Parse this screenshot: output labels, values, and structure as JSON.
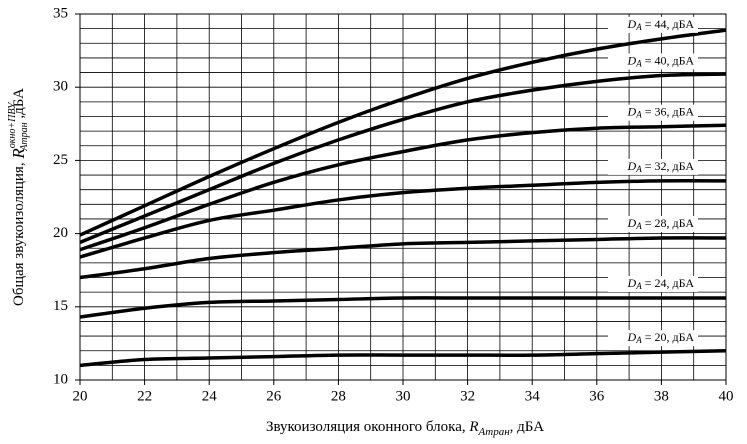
{
  "chart_data": {
    "type": "line",
    "xlabel": {
      "text": "Звукоизоляция оконного блока, ",
      "symbol": "R",
      "subscript": "Aтран",
      "unit": ", дБА"
    },
    "ylabel": {
      "text": "Общая звукоизоляция, ",
      "symbol": "R",
      "superscript": "окно+ПВУ",
      "subscript": "Aтран",
      "unit": " ,дБА"
    },
    "curve_label": {
      "symbol": "D",
      "subscript": "A"
    },
    "x": [
      20,
      22,
      24,
      26,
      28,
      30,
      32,
      34,
      36,
      38,
      40
    ],
    "series": [
      {
        "name": " = 44, дБА",
        "color": "#000000",
        "values": [
          19.9,
          21.9,
          23.9,
          25.8,
          27.6,
          29.2,
          30.6,
          31.7,
          32.6,
          33.3,
          33.9
        ]
      },
      {
        "name": " = 40, дБА",
        "color": "#000000",
        "values": [
          19.4,
          21.2,
          23.0,
          24.8,
          26.4,
          27.8,
          29.0,
          29.8,
          30.4,
          30.8,
          30.9
        ]
      },
      {
        "name": " = 36, дБА",
        "color": "#000000",
        "values": [
          18.9,
          20.4,
          22.0,
          23.5,
          24.7,
          25.6,
          26.4,
          26.9,
          27.2,
          27.3,
          27.4
        ]
      },
      {
        "name": " = 32, дБА",
        "color": "#000000",
        "values": [
          18.4,
          19.7,
          20.9,
          21.6,
          22.3,
          22.8,
          23.1,
          23.3,
          23.5,
          23.6,
          23.6
        ]
      },
      {
        "name": " = 28, дБА",
        "color": "#000000",
        "values": [
          17.0,
          17.6,
          18.3,
          18.7,
          19.0,
          19.3,
          19.4,
          19.5,
          19.6,
          19.7,
          19.7
        ]
      },
      {
        "name": " = 24, дБА",
        "color": "#000000",
        "values": [
          14.3,
          14.9,
          15.3,
          15.4,
          15.5,
          15.6,
          15.6,
          15.6,
          15.6,
          15.6,
          15.6
        ]
      },
      {
        "name": " = 20, дБА",
        "color": "#000000",
        "values": [
          11.0,
          11.4,
          11.5,
          11.6,
          11.7,
          11.7,
          11.7,
          11.7,
          11.8,
          11.9,
          12.0
        ]
      }
    ],
    "xlim": [
      20,
      40
    ],
    "xticks": [
      20,
      22,
      24,
      26,
      28,
      30,
      32,
      34,
      36,
      38,
      40
    ],
    "ylim": [
      10,
      35
    ],
    "yticks": [
      10,
      15,
      20,
      25,
      30,
      35
    ],
    "grid": true,
    "xgrid_step": 1,
    "ygrid_step": 1
  }
}
